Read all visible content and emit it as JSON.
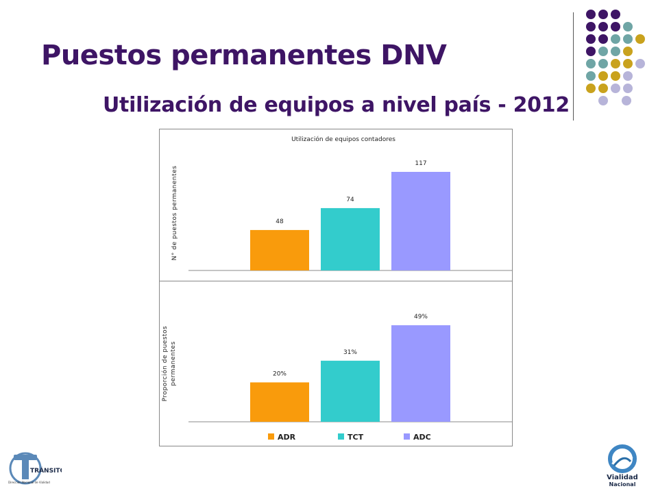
{
  "slide": {
    "title": "Puestos permanentes DNV",
    "subtitle": "Utilización de equipos a nivel país - 2012"
  },
  "decor": {
    "dot_colors": {
      "purple": "#3e1565",
      "teal": "#6fa5a5",
      "gold": "#c9a21d",
      "lavender": "#b7b4d9"
    }
  },
  "logos": {
    "left": {
      "text": "TRÁNSITO",
      "small": "Dirección Nacional de Vialidad"
    },
    "right": {
      "line1": "Vialidad",
      "line2": "Nacional"
    }
  },
  "colors": {
    "ADR": "#f99b0c",
    "TCT": "#33cccc",
    "ADC": "#9999ff"
  },
  "legend": [
    {
      "label": "ADR",
      "color": "#f99b0c"
    },
    {
      "label": "TCT",
      "color": "#33cccc"
    },
    {
      "label": "ADC",
      "color": "#9999ff"
    }
  ],
  "chart_data": [
    {
      "type": "bar",
      "title": "Utilización de equipos contadores",
      "ylabel": "N° de puestos permanentes",
      "categories": [
        "ADR",
        "TCT",
        "ADC"
      ],
      "values": [
        48,
        74,
        117
      ],
      "value_labels": [
        "48",
        "74",
        "117"
      ],
      "ylim": [
        0,
        117
      ],
      "grid": false
    },
    {
      "type": "bar",
      "title": "",
      "ylabel": "Proporción de puestos permanentes",
      "categories": [
        "ADR",
        "TCT",
        "ADC"
      ],
      "values": [
        20,
        31,
        49
      ],
      "value_labels": [
        "20%",
        "31%",
        "49%"
      ],
      "ylim": [
        0,
        49
      ],
      "grid": false,
      "legend": "bottom"
    }
  ]
}
